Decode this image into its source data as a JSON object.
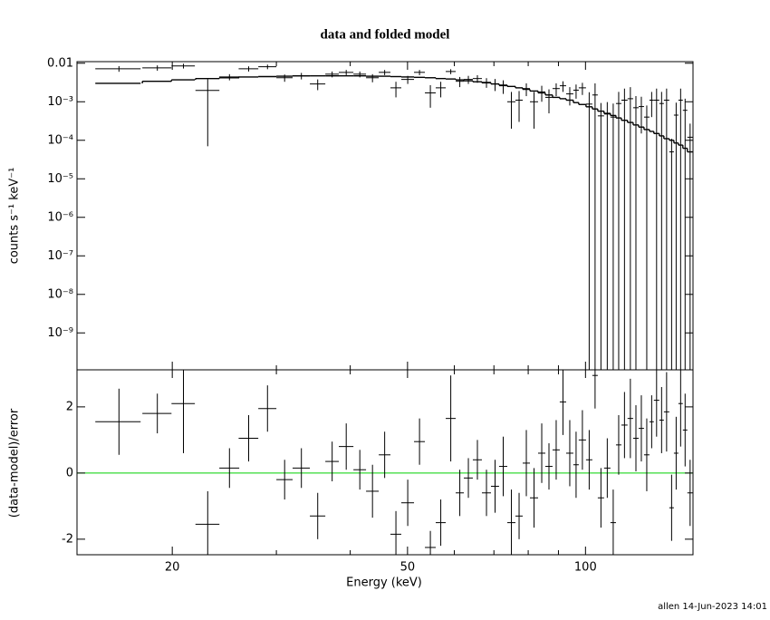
{
  "footer": "allen 14-Jun-2023 14:01",
  "chart_data": [
    {
      "type": "errorbar",
      "title": "data and folded model",
      "ylabel": "counts s⁻¹ keV⁻¹",
      "log_x": true,
      "log_y": true,
      "xlim": [
        13.8,
        152
      ],
      "ylim": [
        1.1e-10,
        0.011
      ],
      "xticks": [
        20,
        50,
        100
      ],
      "xminor": [
        30,
        40,
        60,
        70,
        80,
        90
      ],
      "yticks": [
        {
          "value": 0.01,
          "label": "0.01"
        },
        {
          "value": 0.001,
          "label": "10⁻³"
        },
        {
          "value": 0.0001,
          "label": "10⁻⁴"
        },
        {
          "value": 1e-05,
          "label": "10⁻⁵"
        },
        {
          "value": 1e-06,
          "label": "10⁻⁶"
        },
        {
          "value": 1e-07,
          "label": "10⁻⁷"
        },
        {
          "value": 1e-08,
          "label": "10⁻⁸"
        },
        {
          "value": 1e-09,
          "label": "10⁻⁹"
        }
      ],
      "color": "#000000",
      "model_color": "#000000",
      "x": [
        16.25,
        18.87,
        20.89,
        22.96,
        24.99,
        26.93,
        28.98,
        30.98,
        33.07,
        35.24,
        37.28,
        39.38,
        41.52,
        43.62,
        45.74,
        47.79,
        50.04,
        52.39,
        54.65,
        56.91,
        59.17,
        61.29,
        63.37,
        65.64,
        68.0,
        70.31,
        72.58,
        74.93,
        77.21,
        79.42,
        81.84,
        84.33,
        86.74,
        89.21,
        91.6,
        94.06,
        96.4,
        98.8,
        101.45,
        103.8,
        106.2,
        108.85,
        111.4,
        113.8,
        116.4,
        119.1,
        121.7,
        124.3,
        126.95,
        129.4,
        131.9,
        134.5,
        137.15,
        139.85,
        142.35,
        144.85,
        147.4,
        150.3
      ],
      "xerr": [
        1.43,
        1.07,
        0.95,
        1.07,
        0.97,
        1.03,
        1.02,
        0.98,
        1.11,
        1.06,
        0.98,
        1.12,
        1.02,
        1.08,
        1.04,
        1.01,
        1.24,
        1.11,
        1.15,
        1.11,
        1.15,
        0.97,
        1.11,
        1.16,
        1.2,
        1.11,
        1.16,
        1.19,
        1.09,
        1.12,
        1.3,
        1.19,
        1.22,
        1.25,
        1.14,
        1.32,
        1.02,
        1.4,
        1.25,
        1.1,
        1.3,
        1.35,
        1.2,
        1.2,
        1.4,
        1.3,
        1.3,
        1.3,
        1.35,
        1.1,
        1.4,
        1.2,
        1.45,
        1.25,
        1.25,
        1.25,
        1.3,
        1.6
      ],
      "values": [
        0.0072,
        0.0076,
        0.0085,
        0.00197,
        0.0044,
        0.0072,
        0.0081,
        0.0042,
        0.0047,
        0.0029,
        0.0052,
        0.0058,
        0.0052,
        0.0042,
        0.0058,
        0.0023,
        0.0038,
        0.0058,
        0.0017,
        0.0023,
        0.0061,
        0.0034,
        0.0038,
        0.004,
        0.0032,
        0.0029,
        0.0026,
        0.001,
        0.0011,
        0.0022,
        0.001,
        0.0018,
        0.0013,
        0.0022,
        0.0026,
        0.0016,
        0.002,
        0.0023,
        0.00087,
        0.0015,
        0.00043,
        0.00048,
        0.0004,
        0.0009,
        0.0011,
        0.0012,
        0.0007,
        0.00075,
        0.0004,
        0.0011,
        0.0011,
        0.0009,
        0.0011,
        5e-05,
        0.00045,
        0.0011,
        0.0006,
        0.00012
      ],
      "yerr": [
        0.0012,
        0.0012,
        0.0012,
        0.0019,
        0.0008,
        0.0011,
        0.0011,
        0.0009,
        0.0009,
        0.0009,
        0.0009,
        0.0009,
        0.0009,
        0.001,
        0.0009,
        0.001,
        0.0009,
        0.0009,
        0.001,
        0.001,
        0.0009,
        0.001,
        0.0009,
        0.0009,
        0.0009,
        0.001,
        0.001,
        0.0008,
        0.0008,
        0.0008,
        0.0008,
        0.0008,
        0.0008,
        0.0008,
        0.0008,
        0.0008,
        0.0008,
        0.0008,
        0.0009,
        0.0015,
        0.0005,
        0.0005,
        0.0005,
        0.0009,
        0.0011,
        0.0012,
        0.0007,
        0.0006,
        0.0004,
        0.0007,
        0.0011,
        0.0009,
        0.0011,
        6e-05,
        0.0005,
        0.0011,
        0.0006,
        0.00015
      ],
      "model": [
        0.003,
        0.0034,
        0.0037,
        0.004,
        0.0042,
        0.0044,
        0.0045,
        0.0046,
        0.0047,
        0.0047,
        0.0047,
        0.0047,
        0.0047,
        0.0046,
        0.0046,
        0.0045,
        0.0044,
        0.0043,
        0.0042,
        0.004,
        0.0039,
        0.0037,
        0.0035,
        0.0033,
        0.0031,
        0.0029,
        0.0027,
        0.0025,
        0.0023,
        0.0021,
        0.0019,
        0.0017,
        0.0015,
        0.0013,
        0.0012,
        0.0011,
        0.00095,
        0.00085,
        0.00074,
        0.00065,
        0.00057,
        0.0005,
        0.00044,
        0.00038,
        0.00033,
        0.00029,
        0.00025,
        0.00022,
        0.00019,
        0.00017,
        0.00015,
        0.00013,
        0.00011,
        0.0001,
        8.5e-05,
        7.5e-05,
        6.2e-05,
        5e-05
      ]
    },
    {
      "type": "errorbar",
      "xlabel": "Energy (keV)",
      "ylabel": "(data-model)/error",
      "log_x": true,
      "log_y": false,
      "xlim": [
        13.8,
        152
      ],
      "ylim": [
        -2.47,
        3.12
      ],
      "xticks": [
        20,
        50,
        100
      ],
      "xminor": [
        30,
        40,
        60,
        70,
        80,
        90
      ],
      "yticks": [
        -2,
        0,
        2
      ],
      "color": "#000000",
      "zero_line_color": "#00d000",
      "x": [
        16.25,
        18.87,
        20.89,
        22.96,
        24.99,
        26.93,
        28.98,
        30.98,
        33.07,
        35.24,
        37.28,
        39.38,
        41.52,
        43.62,
        45.74,
        47.79,
        50.04,
        52.39,
        54.65,
        56.91,
        59.17,
        61.29,
        63.37,
        65.64,
        68.0,
        70.31,
        72.58,
        74.93,
        77.21,
        79.42,
        81.84,
        84.33,
        86.74,
        89.21,
        91.6,
        94.06,
        96.4,
        98.8,
        101.45,
        103.8,
        106.2,
        108.85,
        111.4,
        113.8,
        116.4,
        119.1,
        121.7,
        124.3,
        126.95,
        129.4,
        131.9,
        134.5,
        137.15,
        139.85,
        142.35,
        144.85,
        147.4,
        150.3
      ],
      "xerr": [
        1.43,
        1.07,
        0.95,
        1.07,
        0.97,
        1.03,
        1.02,
        0.98,
        1.11,
        1.06,
        0.98,
        1.12,
        1.02,
        1.08,
        1.04,
        1.01,
        1.24,
        1.11,
        1.15,
        1.11,
        1.15,
        0.97,
        1.11,
        1.16,
        1.2,
        1.11,
        1.16,
        1.19,
        1.09,
        1.12,
        1.3,
        1.19,
        1.22,
        1.25,
        1.14,
        1.32,
        1.02,
        1.4,
        1.25,
        1.1,
        1.3,
        1.35,
        1.2,
        1.2,
        1.4,
        1.3,
        1.3,
        1.3,
        1.35,
        1.1,
        1.4,
        1.2,
        1.45,
        1.25,
        1.25,
        1.25,
        1.3,
        1.6
      ],
      "values": [
        1.55,
        1.8,
        2.1,
        -1.55,
        0.15,
        1.05,
        1.95,
        -0.2,
        0.15,
        -1.3,
        0.35,
        0.8,
        0.1,
        -0.55,
        0.55,
        -1.85,
        -0.9,
        0.95,
        -2.25,
        -1.5,
        1.65,
        -0.6,
        -0.15,
        0.4,
        -0.6,
        -0.4,
        0.2,
        -1.5,
        -1.3,
        0.3,
        -0.75,
        0.6,
        0.2,
        0.7,
        2.15,
        0.6,
        0.25,
        1.0,
        0.4,
        2.95,
        -0.75,
        0.15,
        -1.5,
        0.85,
        1.45,
        1.65,
        1.05,
        1.35,
        0.55,
        1.55,
        2.2,
        1.6,
        1.85,
        -1.05,
        0.6,
        2.1,
        1.3,
        -0.6
      ],
      "yerr": [
        1.0,
        0.6,
        1.5,
        1.0,
        0.6,
        0.7,
        0.7,
        0.6,
        0.6,
        0.7,
        0.6,
        0.7,
        0.6,
        0.8,
        0.7,
        0.7,
        0.7,
        0.7,
        0.5,
        0.7,
        1.3,
        0.7,
        0.6,
        0.6,
        0.7,
        0.8,
        0.9,
        1.0,
        0.7,
        1.0,
        0.9,
        0.9,
        0.7,
        0.9,
        1.0,
        1.0,
        1.0,
        0.9,
        0.9,
        1.0,
        0.9,
        0.9,
        1.0,
        0.9,
        1.0,
        1.2,
        1.0,
        1.0,
        1.1,
        0.8,
        1.1,
        1.0,
        1.2,
        1.0,
        1.1,
        1.3,
        1.1,
        1.0
      ]
    }
  ]
}
